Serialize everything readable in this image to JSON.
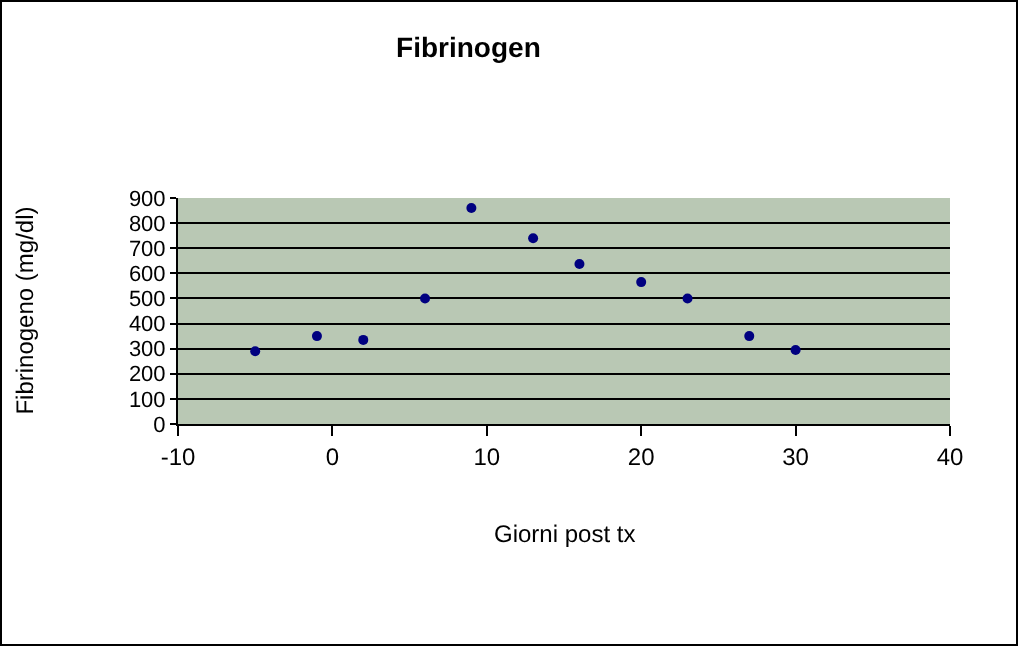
{
  "chart_data": {
    "type": "scatter",
    "title": "Fibrinogen",
    "xlabel": "Giorni post tx",
    "ylabel": "Fibrinogeno (mg/dl)",
    "x": [
      -5,
      -1,
      2,
      6,
      9,
      13,
      16,
      20,
      23,
      27,
      30
    ],
    "series": [
      {
        "color": "#000080",
        "values": [
          290,
          350,
          335,
          500,
          860,
          740,
          637,
          565,
          500,
          350,
          295
        ]
      }
    ],
    "xlim": [
      -10,
      40
    ],
    "xticks": [
      -10,
      0,
      10,
      20,
      30,
      40
    ],
    "ylim": [
      0,
      900
    ],
    "yticks": [
      0,
      100,
      200,
      300,
      400,
      500,
      600,
      700,
      800,
      900
    ],
    "grid": "y",
    "marker": "circle"
  }
}
